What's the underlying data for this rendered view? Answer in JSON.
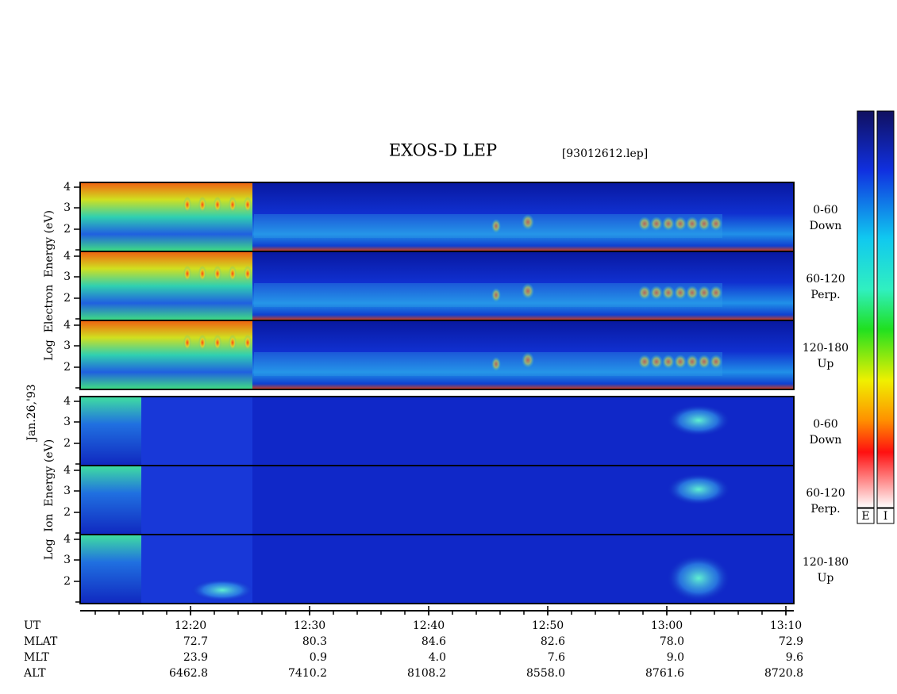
{
  "title": "EXOS-D LEP",
  "file": "[93012612.lep]",
  "date": "Jan.26,'93",
  "electron_axis_label": "Log  Electron  Energy (eV)",
  "ion_axis_label": "Log  Ion  Energy (eV)",
  "energy_ticks": [
    "4",
    "3",
    "2"
  ],
  "electron_panels": [
    {
      "angle": "0-60",
      "direction": "Down"
    },
    {
      "angle": "60-120",
      "direction": "Perp."
    },
    {
      "angle": "120-180",
      "direction": "Up"
    }
  ],
  "ion_panels": [
    {
      "angle": "0-60",
      "direction": "Down"
    },
    {
      "angle": "60-120",
      "direction": "Perp."
    },
    {
      "angle": "120-180",
      "direction": "Up"
    }
  ],
  "colorbars": [
    "E",
    "I"
  ],
  "ephemeris": [
    {
      "label": "UT",
      "values": [
        "12:20",
        "12:30",
        "12:40",
        "12:50",
        "13:00",
        "13:10"
      ]
    },
    {
      "label": "MLAT",
      "values": [
        "72.7",
        "80.3",
        "84.6",
        "82.6",
        "78.0",
        "72.9"
      ]
    },
    {
      "label": "MLT",
      "values": [
        "23.9",
        "0.9",
        "4.0",
        "7.6",
        "9.0",
        "9.6"
      ]
    },
    {
      "label": "ALT",
      "values": [
        "6462.8",
        "7410.2",
        "8108.2",
        "8558.0",
        "8761.6",
        "8720.8"
      ]
    }
  ]
}
